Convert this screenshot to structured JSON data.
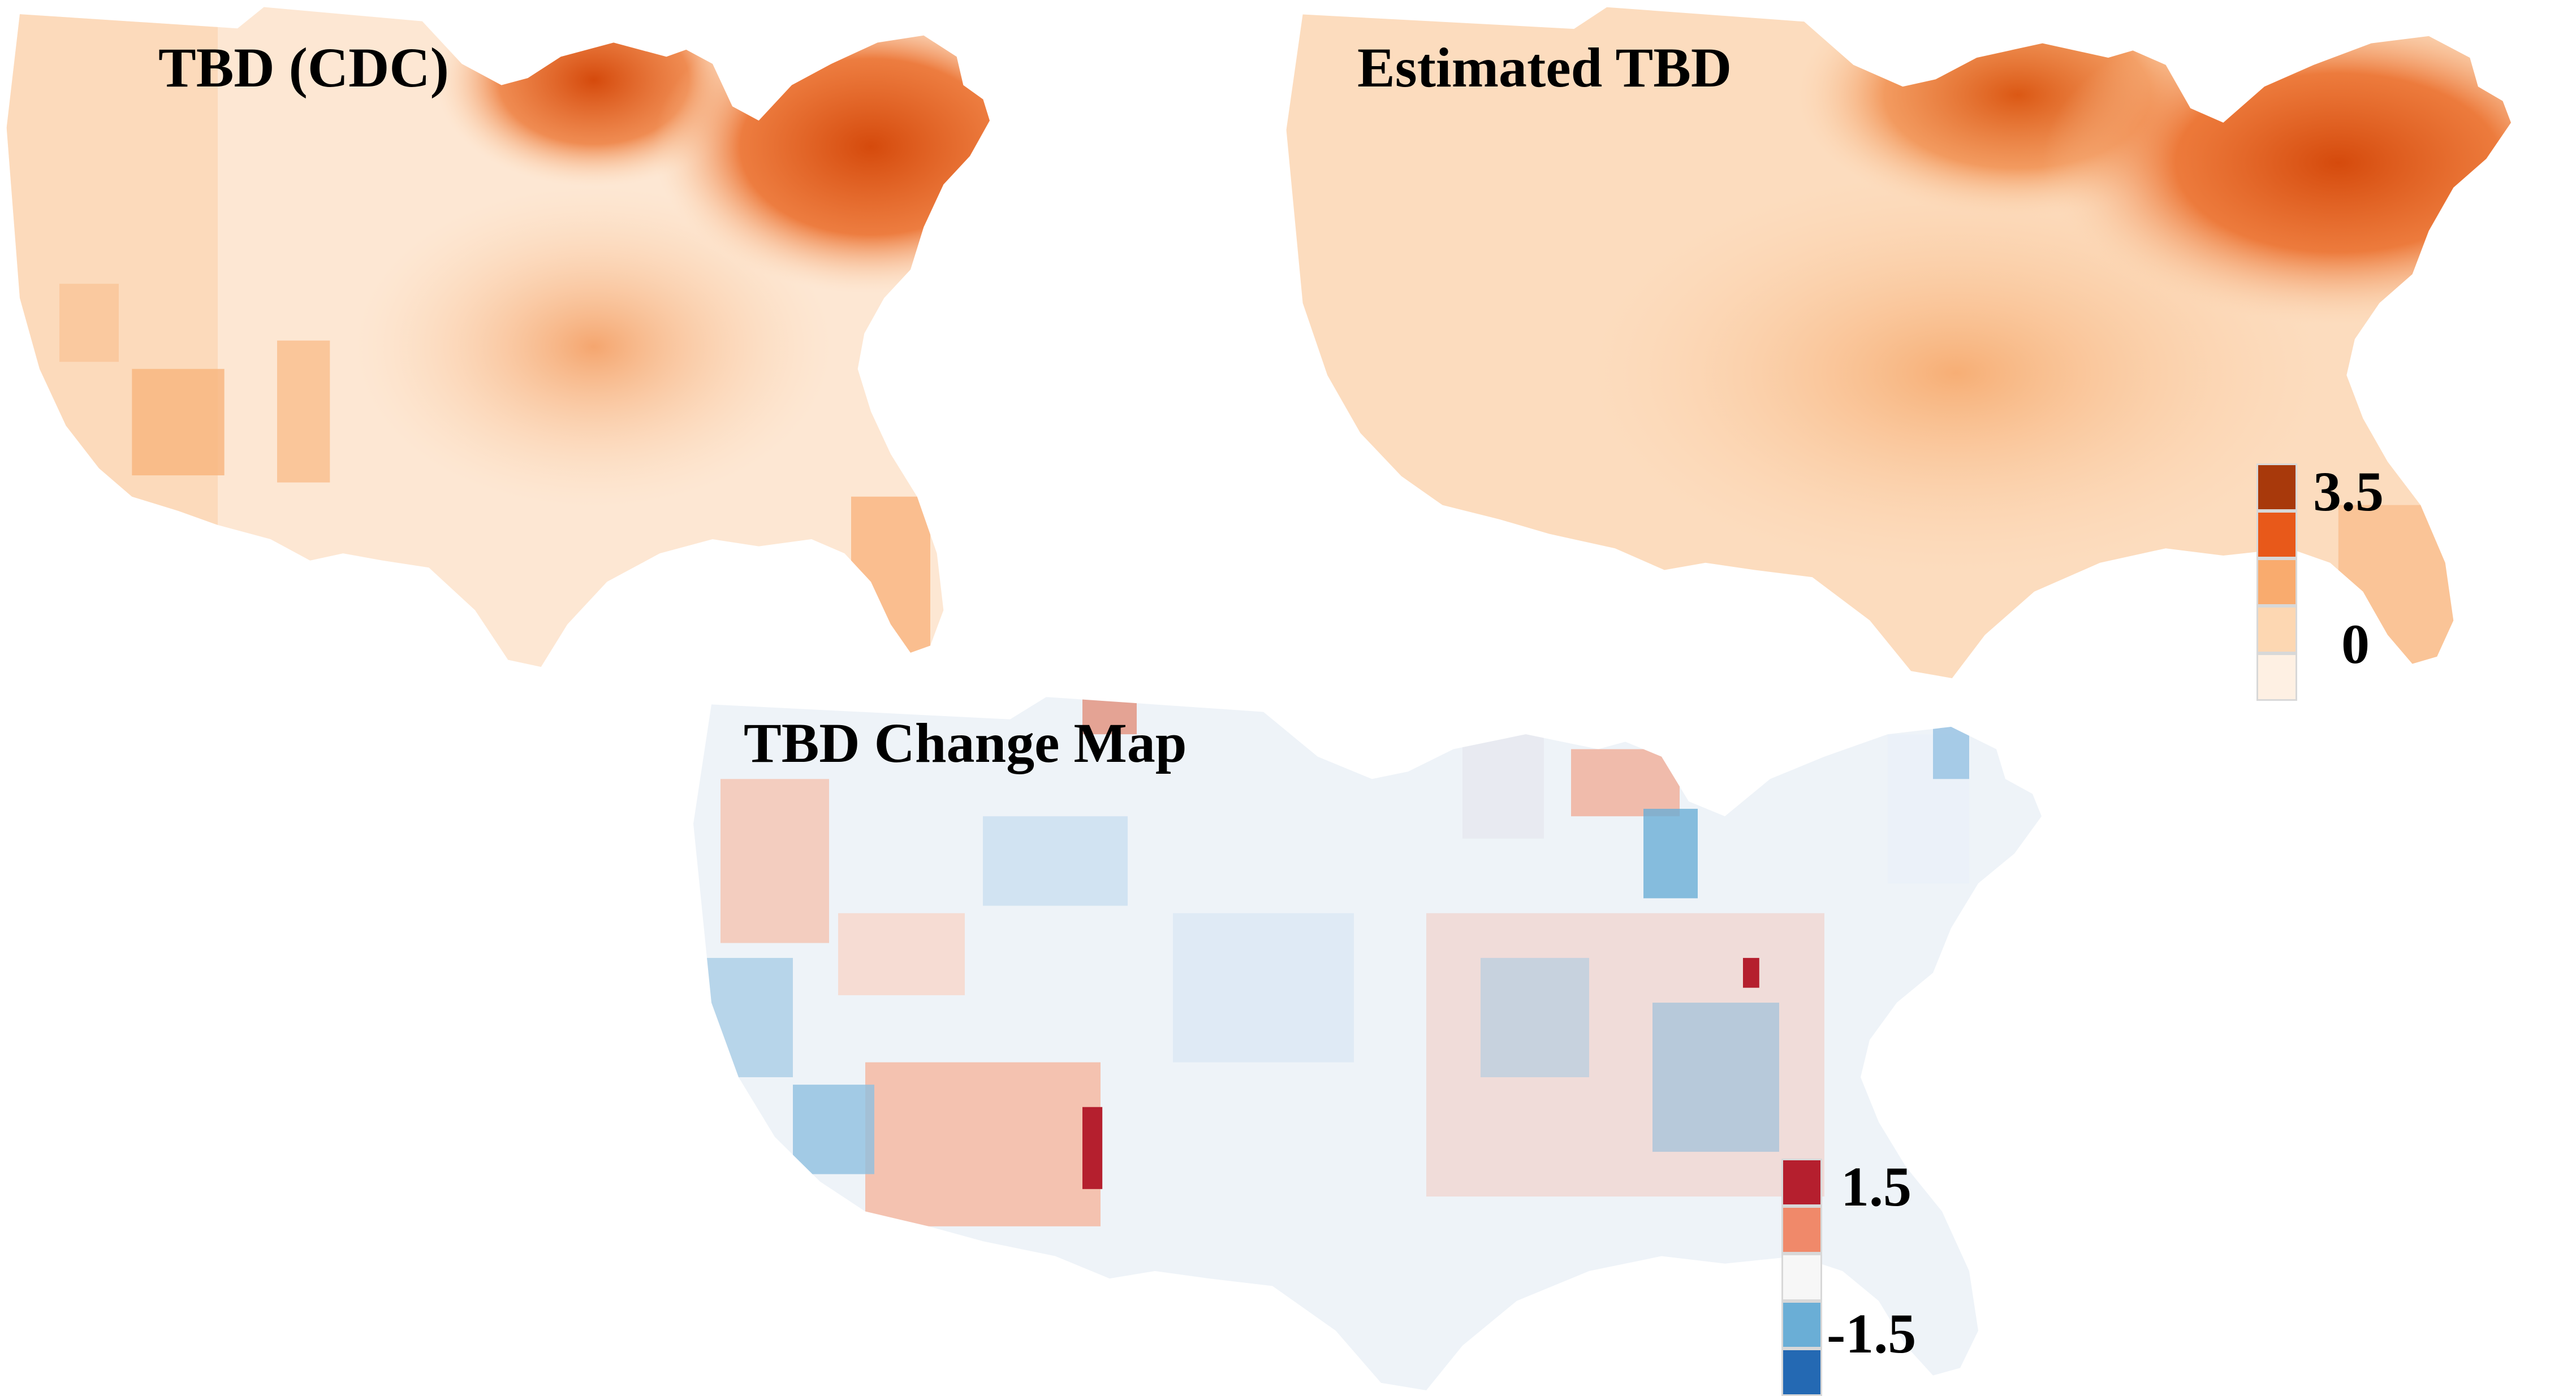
{
  "maps": [
    {
      "id": "cdc",
      "title": "TBD (CDC)",
      "palette": "orange"
    },
    {
      "id": "estimated",
      "title": "Estimated TBD",
      "palette": "orange-smooth"
    },
    {
      "id": "change",
      "title": "TBD Change Map",
      "palette": "diverging"
    }
  ],
  "legends": {
    "tbd": {
      "max_label": "3.5",
      "min_label": "0",
      "colors": [
        "#a8390b",
        "#e8591a",
        "#f9ab6e",
        "#fdd7b2",
        "#fef0e3"
      ]
    },
    "change": {
      "max_label": "1.5",
      "min_label": "-1.5",
      "colors": [
        "#b51f2e",
        "#f0896a",
        "#f7f7f7",
        "#6aaed6",
        "#2469b3"
      ]
    }
  }
}
